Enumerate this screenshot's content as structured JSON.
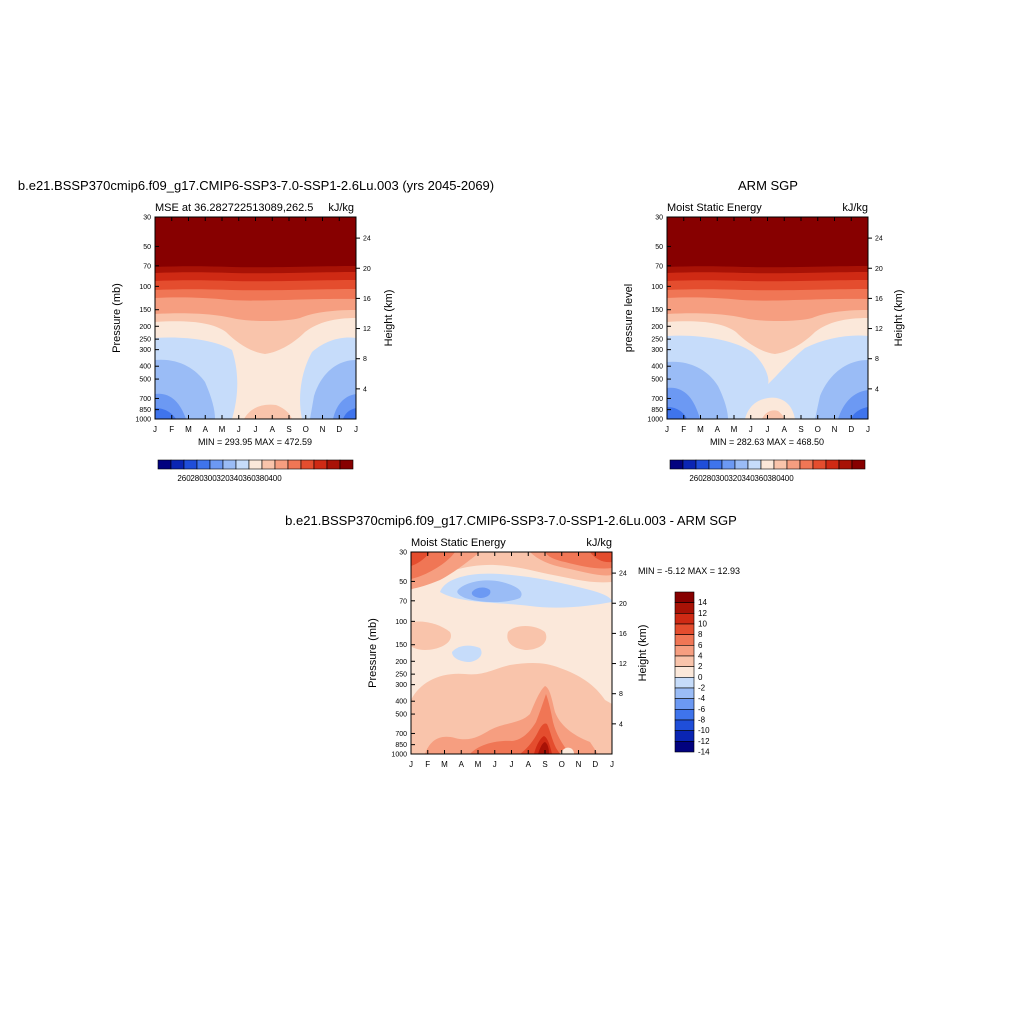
{
  "page": {
    "background": "#ffffff"
  },
  "palette": [
    "#02027f",
    "#0a25b3",
    "#1f4ed9",
    "#3f74ec",
    "#6c99f3",
    "#9abcf6",
    "#c6dcfa",
    "#fbe8da",
    "#f9c4ab",
    "#f69e80",
    "#f07655",
    "#e44d2e",
    "#cf2a14",
    "#a81206",
    "#870000"
  ],
  "chart_data": [
    {
      "type": "heatmap",
      "title": "b.e21.BSSP370cmip6.f09_g17.CMIP6-SSP3-7.0-SSP1-2.6Lu.003 (yrs 2045-2069)",
      "left_string": "MSE at 36.282722513089,262.5",
      "right_string": "kJ/kg",
      "ylabel": "Pressure (mb)",
      "y2label": "Height (km)",
      "x": [
        "J",
        "F",
        "M",
        "A",
        "M",
        "J",
        "J",
        "A",
        "S",
        "O",
        "N",
        "D",
        "J"
      ],
      "y_pressure_ticks": [
        "30",
        "50",
        "70",
        "100",
        "150",
        "200",
        "250",
        "300",
        "400",
        "500",
        "700",
        "850",
        "1000"
      ],
      "y_height_ticks": [
        "24",
        "20",
        "16",
        "12",
        "8",
        "4"
      ],
      "minmax_label": "MIN = 293.95 MAX = 472.59",
      "min": 293.95,
      "max": 472.59,
      "colorbar": {
        "orientation": "horizontal",
        "labels": [
          "260",
          "280",
          "300",
          "320",
          "340",
          "360",
          "380",
          "400"
        ]
      }
    },
    {
      "type": "heatmap",
      "title": "ARM SGP",
      "left_string": "Moist Static Energy",
      "right_string": "kJ/kg",
      "ylabel": "pressure level",
      "y2label": "Height (km)",
      "x": [
        "J",
        "F",
        "M",
        "A",
        "M",
        "J",
        "J",
        "A",
        "S",
        "O",
        "N",
        "D",
        "J"
      ],
      "y_pressure_ticks": [
        "30",
        "50",
        "70",
        "100",
        "150",
        "200",
        "250",
        "300",
        "400",
        "500",
        "700",
        "850",
        "1000"
      ],
      "y_height_ticks": [
        "24",
        "20",
        "16",
        "12",
        "8",
        "4"
      ],
      "minmax_label": "MIN = 282.63 MAX = 468.50",
      "min": 282.63,
      "max": 468.5,
      "colorbar": {
        "orientation": "horizontal",
        "labels": [
          "260",
          "280",
          "300",
          "320",
          "340",
          "360",
          "380",
          "400"
        ]
      }
    },
    {
      "type": "heatmap",
      "title": "b.e21.BSSP370cmip6.f09_g17.CMIP6-SSP3-7.0-SSP1-2.6Lu.003 - ARM SGP",
      "left_string": "Moist Static Energy",
      "right_string": "kJ/kg",
      "ylabel": "Pressure (mb)",
      "y2label": "Height (km)",
      "x": [
        "J",
        "F",
        "M",
        "A",
        "M",
        "J",
        "J",
        "A",
        "S",
        "O",
        "N",
        "D",
        "J"
      ],
      "y_pressure_ticks": [
        "30",
        "50",
        "70",
        "100",
        "150",
        "200",
        "250",
        "300",
        "400",
        "500",
        "700",
        "850",
        "1000"
      ],
      "y_height_ticks": [
        "24",
        "20",
        "16",
        "12",
        "8",
        "4"
      ],
      "minmax_label": "MIN =  -5.12 MAX =  12.93",
      "min": -5.12,
      "max": 12.93,
      "colorbar": {
        "orientation": "vertical",
        "labels": [
          "14",
          "12",
          "10",
          "8",
          "6",
          "4",
          "2",
          "0",
          "-2",
          "-4",
          "-6",
          "-8",
          "-10",
          "-12",
          "-14"
        ]
      }
    }
  ]
}
